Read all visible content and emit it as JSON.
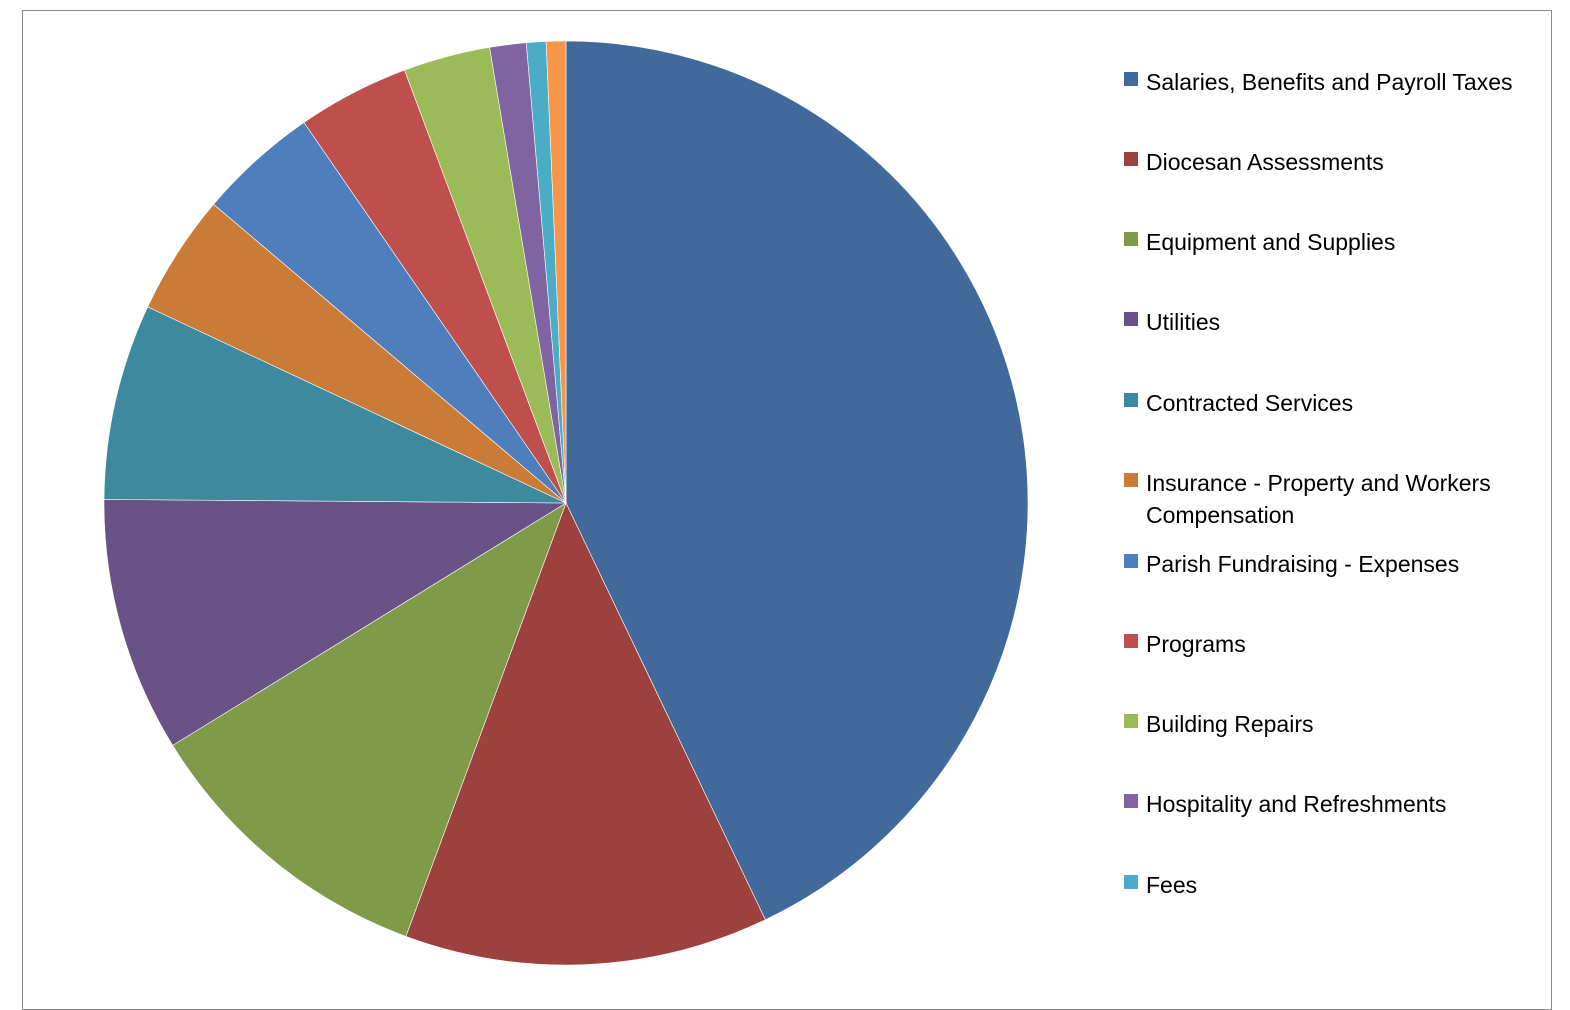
{
  "chart_data": {
    "type": "pie",
    "title": "",
    "slices": [
      {
        "label": "Salaries, Benefits and Payroll Taxes",
        "value": 43.8,
        "color": "#416A9A"
      },
      {
        "label": "Diocesan Assessments",
        "value": 13.0,
        "color": "#9C413E"
      },
      {
        "label": "Equipment and Supplies",
        "value": 10.8,
        "color": "#7F9A48"
      },
      {
        "label": "Utilities",
        "value": 9.1,
        "color": "#695285"
      },
      {
        "label": "Contracted Services",
        "value": 7.0,
        "color": "#3D8A9F"
      },
      {
        "label": "Insurance - Property and Workers Compensation",
        "value": 4.3,
        "color": "#CB7B38"
      },
      {
        "label": "Parish Fundraising - Expenses",
        "value": 4.3,
        "color": "#4E7EBB"
      },
      {
        "label": "Programs",
        "value": 4.0,
        "color": "#BE4F4D"
      },
      {
        "label": "Building Repairs",
        "value": 3.1,
        "color": "#9BBB59"
      },
      {
        "label": "Hospitality and Refreshments",
        "value": 1.3,
        "color": "#8064A2"
      },
      {
        "label": "Fees",
        "value": 0.7,
        "color": "#4BACC6"
      },
      {
        "label": "",
        "value": 0.7,
        "color": "#F79646"
      }
    ],
    "legend_placement": "right"
  }
}
